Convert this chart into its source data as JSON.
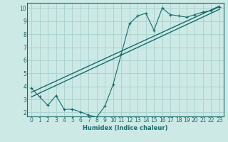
{
  "xlabel": "Humidex (Indice chaleur)",
  "xlim": [
    -0.5,
    23.5
  ],
  "ylim": [
    1.7,
    10.4
  ],
  "xticks": [
    0,
    1,
    2,
    3,
    4,
    5,
    6,
    7,
    8,
    9,
    10,
    11,
    12,
    13,
    14,
    15,
    16,
    17,
    18,
    19,
    20,
    21,
    22,
    23
  ],
  "yticks": [
    2,
    3,
    4,
    5,
    6,
    7,
    8,
    9,
    10
  ],
  "bg_color": "#cce9e6",
  "grid_color": "#aad4d0",
  "line_color": "#1a6b6b",
  "line1_x": [
    0,
    1,
    2,
    3,
    4,
    5,
    6,
    7,
    8,
    9,
    10,
    11,
    12,
    13,
    14,
    15,
    16,
    17,
    18,
    19,
    20,
    21,
    22,
    23
  ],
  "line1_y": [
    3.85,
    3.2,
    2.55,
    3.3,
    2.25,
    2.25,
    2.05,
    1.8,
    1.65,
    2.5,
    4.15,
    6.5,
    8.8,
    9.4,
    9.6,
    8.3,
    10.0,
    9.5,
    9.4,
    9.3,
    9.5,
    9.7,
    9.8,
    10.1
  ],
  "line2_x": [
    0,
    23
  ],
  "line2_y": [
    3.2,
    9.9
  ],
  "line3_x": [
    0,
    23
  ],
  "line3_y": [
    3.55,
    10.15
  ],
  "marker": "+"
}
